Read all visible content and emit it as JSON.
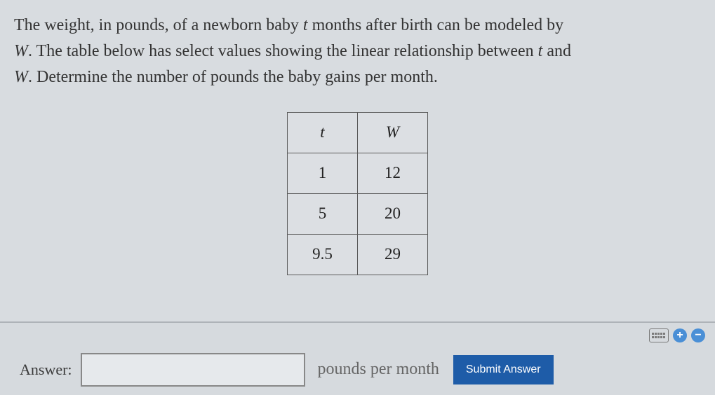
{
  "problem": {
    "line1_a": "The weight, in pounds, of a newborn baby ",
    "var_t": "t",
    "line1_b": " months after birth can be modeled by",
    "line2_a": "",
    "var_W": "W",
    "line2_b": ". The table below has select values showing the linear relationship between ",
    "line2_c": " and",
    "line3_a": "",
    "line3_b": ". Determine the number of pounds the baby gains per month."
  },
  "table": {
    "header_t": "t",
    "header_W": "W",
    "rows": [
      {
        "t": "1",
        "W": "12"
      },
      {
        "t": "5",
        "W": "20"
      },
      {
        "t": "9.5",
        "W": "29"
      }
    ],
    "border_color": "#5a5a5a",
    "cell_fontsize": 23
  },
  "answer": {
    "label": "Answer:",
    "value": "",
    "unit": "pounds per month",
    "submit_label": "Submit Answer"
  },
  "colors": {
    "background": "#d8dce0",
    "text": "#2a2a2a",
    "submit_bg": "#1e5ca8",
    "icon_blue": "#4a8fd6"
  }
}
